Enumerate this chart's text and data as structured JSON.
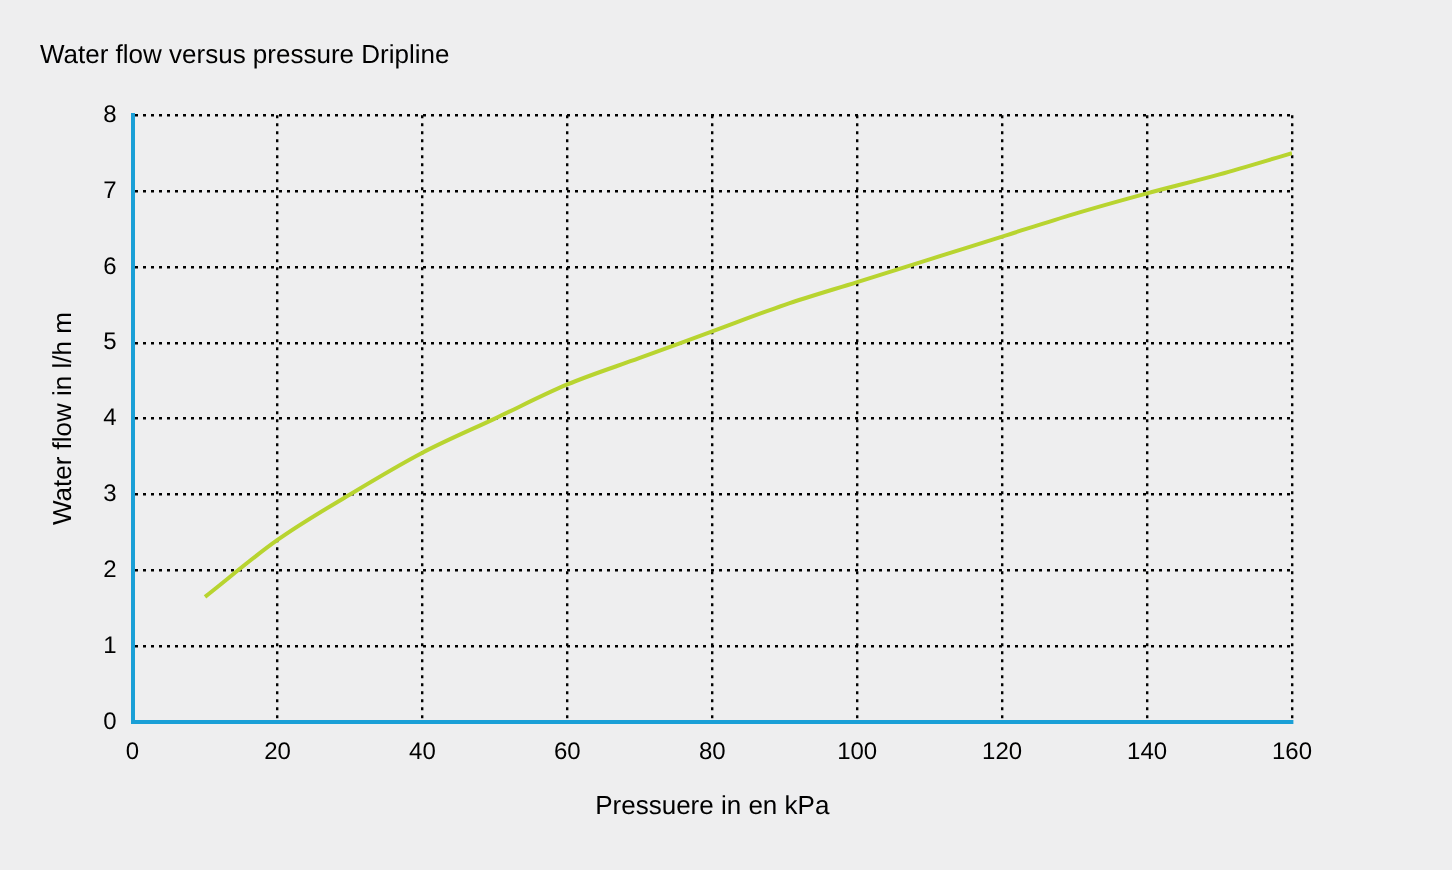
{
  "chart_data": {
    "type": "line",
    "title": "Water flow versus pressure Dripline",
    "xlabel": "Pressuere in en kPa",
    "ylabel": "Water flow in l/h m",
    "x": [
      10,
      20,
      30,
      40,
      50,
      60,
      70,
      80,
      90,
      100,
      110,
      120,
      130,
      140,
      150,
      160
    ],
    "series": [
      {
        "color": "#b8d430",
        "values": [
          1.65,
          2.4,
          3.0,
          3.55,
          4.0,
          4.45,
          4.8,
          5.15,
          5.5,
          5.8,
          6.1,
          6.4,
          6.7,
          6.97,
          7.22,
          7.5
        ]
      }
    ],
    "xlim": [
      0,
      160
    ],
    "xticks": [
      0,
      20,
      40,
      60,
      80,
      100,
      120,
      140,
      160
    ],
    "ylim": [
      0,
      8
    ],
    "yticks": [
      0,
      1,
      2,
      3,
      4,
      5,
      6,
      7,
      8
    ],
    "grid": true,
    "legend": false,
    "marker": "none",
    "line_style": "solid"
  }
}
